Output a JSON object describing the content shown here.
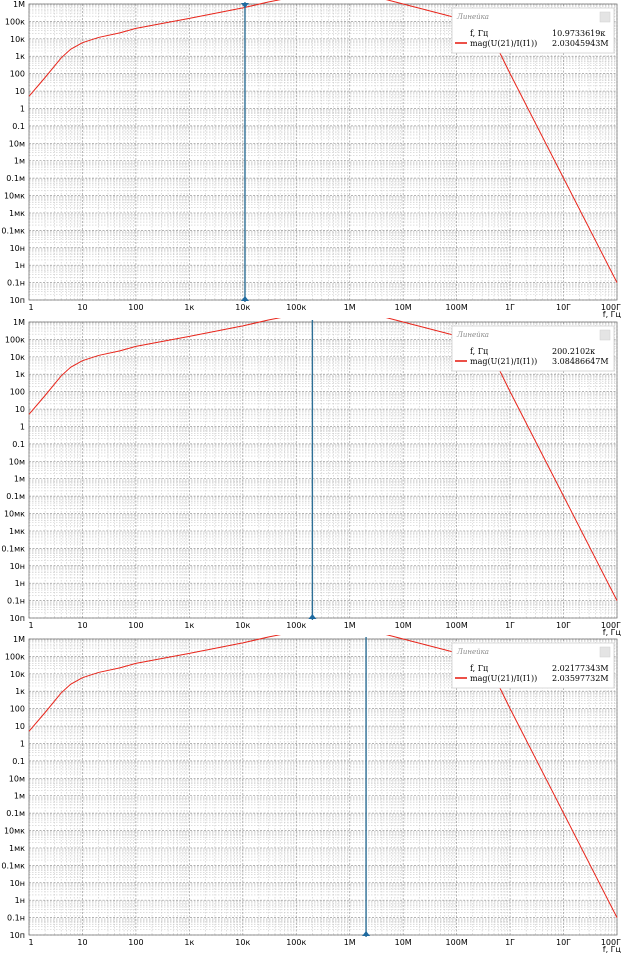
{
  "chart_data": [
    {
      "type": "line",
      "xscale": "log",
      "yscale": "log",
      "xlabel": "f, Гц",
      "x_ticks": [
        "1",
        "10",
        "100",
        "1к",
        "10к",
        "100к",
        "1М",
        "10М",
        "100М",
        "1Г",
        "10Г",
        "100Г"
      ],
      "y_ticks": [
        "1М",
        "100к",
        "10к",
        "1к",
        "100",
        "10",
        "1",
        "0.1",
        "10м",
        "1м",
        "0.1м",
        "10мк",
        "1мк",
        "0.1мк",
        "10н",
        "1н",
        "0.1н",
        "10п"
      ],
      "xlim": [
        1,
        100000000000
      ],
      "ylim": [
        1e-11,
        1000000
      ],
      "grid": true,
      "series": [
        {
          "name": "mag(U(21)/I(I1))",
          "color": "#e8251b",
          "points": [
            [
              1,
              5
            ],
            [
              2,
              60
            ],
            [
              4,
              800
            ],
            [
              6,
              2500
            ],
            [
              10,
              6000
            ],
            [
              20,
              12000
            ],
            [
              50,
              22000
            ],
            [
              100,
              40000
            ],
            [
              1000,
              150000
            ],
            [
              10000,
              600000
            ],
            [
              30000,
              1300000
            ],
            [
              100000,
              2700000
            ],
            [
              1000000,
              3100000
            ],
            [
              3000000,
              2600000
            ],
            [
              10000000,
              1000000
            ],
            [
              100000000,
              160000
            ],
            [
              400000000,
              30000
            ],
            [
              1000000000,
              100
            ],
            [
              10000000000,
              0.0001
            ],
            [
              100000000000,
              1e-10
            ]
          ]
        }
      ],
      "legend": {
        "title": "Линейка",
        "position": "top-right",
        "cursor_label": "f, Гц",
        "cursor_value": "10.9733619к",
        "series_label": "mag(U(21)/I(I1))",
        "series_value": "2.03045943М"
      },
      "cursor": {
        "x": 10973.3619,
        "color": "#2e6f96"
      }
    },
    {
      "type": "line",
      "xscale": "log",
      "yscale": "log",
      "xlabel": "f, Гц",
      "x_ticks": [
        "1",
        "10",
        "100",
        "1к",
        "10к",
        "100к",
        "1М",
        "10М",
        "100М",
        "1Г",
        "10Г",
        "100Г"
      ],
      "y_ticks": [
        "1М",
        "100к",
        "10к",
        "1к",
        "100",
        "10",
        "1",
        "0.1",
        "10м",
        "1м",
        "0.1м",
        "10мк",
        "1мк",
        "0.1мк",
        "10н",
        "1н",
        "0.1н",
        "10п"
      ],
      "xlim": [
        1,
        100000000000
      ],
      "ylim": [
        1e-11,
        1000000
      ],
      "grid": true,
      "series": [
        {
          "name": "mag(U(21)/I(I1))",
          "color": "#e8251b",
          "points": [
            [
              1,
              5
            ],
            [
              2,
              60
            ],
            [
              4,
              800
            ],
            [
              6,
              2500
            ],
            [
              10,
              6000
            ],
            [
              20,
              12000
            ],
            [
              50,
              22000
            ],
            [
              100,
              40000
            ],
            [
              1000,
              150000
            ],
            [
              10000,
              600000
            ],
            [
              30000,
              1300000
            ],
            [
              100000,
              2700000
            ],
            [
              1000000,
              3100000
            ],
            [
              3000000,
              2600000
            ],
            [
              10000000,
              1000000
            ],
            [
              100000000,
              160000
            ],
            [
              400000000,
              30000
            ],
            [
              1000000000,
              100
            ],
            [
              10000000000,
              0.0001
            ],
            [
              100000000000,
              1e-10
            ]
          ]
        }
      ],
      "legend": {
        "title": "Линейка",
        "position": "top-right",
        "cursor_label": "f, Гц",
        "cursor_value": "200.2102к",
        "series_label": "mag(U(21)/I(I1))",
        "series_value": "3.08486647М"
      },
      "cursor": {
        "x": 200210.2,
        "color": "#2e6f96"
      }
    },
    {
      "type": "line",
      "xscale": "log",
      "yscale": "log",
      "xlabel": "f, Гц",
      "x_ticks": [
        "1",
        "10",
        "100",
        "1к",
        "10к",
        "100к",
        "1М",
        "10М",
        "100М",
        "1Г",
        "10Г",
        "100Г"
      ],
      "y_ticks": [
        "1М",
        "100к",
        "10к",
        "1к",
        "100",
        "10",
        "1",
        "0.1",
        "10м",
        "1м",
        "0.1м",
        "10мк",
        "1мк",
        "0.1мк",
        "10н",
        "1н",
        "0.1н",
        "10п"
      ],
      "xlim": [
        1,
        100000000000
      ],
      "ylim": [
        1e-11,
        1000000
      ],
      "grid": true,
      "series": [
        {
          "name": "mag(U(21)/I(I1))",
          "color": "#e8251b",
          "points": [
            [
              1,
              5
            ],
            [
              2,
              60
            ],
            [
              4,
              800
            ],
            [
              6,
              2500
            ],
            [
              10,
              6000
            ],
            [
              20,
              12000
            ],
            [
              50,
              22000
            ],
            [
              100,
              40000
            ],
            [
              1000,
              150000
            ],
            [
              10000,
              600000
            ],
            [
              30000,
              1300000
            ],
            [
              100000,
              2700000
            ],
            [
              1000000,
              3100000
            ],
            [
              3000000,
              2600000
            ],
            [
              10000000,
              1000000
            ],
            [
              100000000,
              160000
            ],
            [
              400000000,
              30000
            ],
            [
              1000000000,
              100
            ],
            [
              10000000000,
              0.0001
            ],
            [
              100000000000,
              1e-10
            ]
          ]
        }
      ],
      "legend": {
        "title": "Линейка",
        "position": "top-right",
        "cursor_label": "f, Гц",
        "cursor_value": "2.02177343М",
        "series_label": "mag(U(21)/I(I1))",
        "series_value": "2.03597732М"
      },
      "cursor": {
        "x": 2021773.43,
        "color": "#2e6f96"
      }
    }
  ]
}
